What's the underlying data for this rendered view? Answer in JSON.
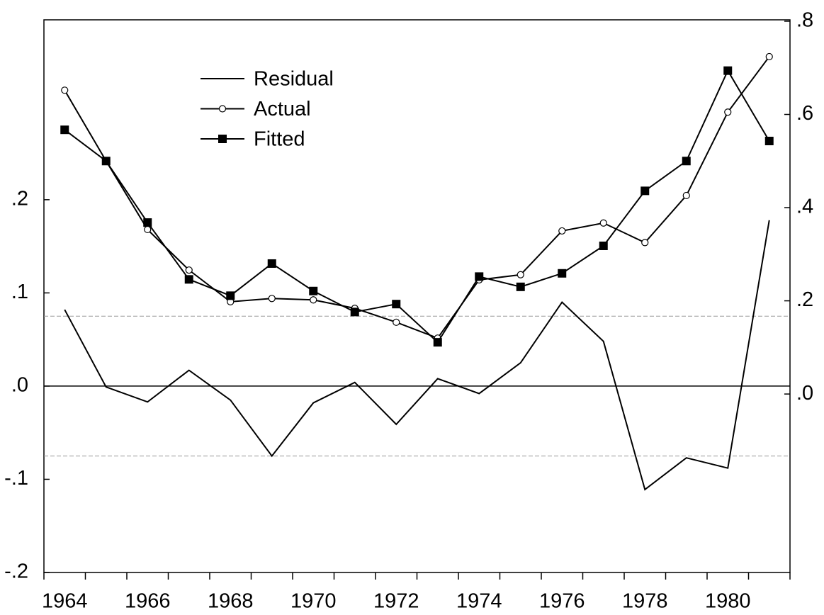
{
  "chart_data": {
    "type": "line",
    "categories": [
      "1964",
      null,
      "1966",
      null,
      "1968",
      null,
      "1970",
      null,
      "1972",
      null,
      "1974",
      null,
      "1976",
      null,
      "1978",
      null,
      "1980",
      null
    ],
    "series": [
      {
        "name": "Residual",
        "color": "#000000",
        "marker": "none",
        "axis": "y",
        "values": [
          0.082,
          -0.001,
          -0.017,
          0.017,
          -0.015,
          -0.075,
          -0.018,
          0.004,
          -0.041,
          0.008,
          -0.008,
          0.025,
          0.09,
          0.048,
          -0.111,
          -0.077,
          -0.088,
          0.178
        ]
      },
      {
        "name": "Actual",
        "color": "#000000",
        "marker": "circle",
        "axis": "y2",
        "values": [
          0.652,
          0.5,
          0.353,
          0.266,
          0.198,
          0.205,
          0.202,
          0.184,
          0.154,
          0.12,
          0.245,
          0.256,
          0.35,
          0.367,
          0.325,
          0.426,
          0.605,
          0.724
        ]
      },
      {
        "name": "Fitted",
        "color": "#000000",
        "marker": "square",
        "axis": "y2",
        "values": [
          0.567,
          0.5,
          0.368,
          0.246,
          0.211,
          0.28,
          0.221,
          0.176,
          0.193,
          0.111,
          0.252,
          0.23,
          0.259,
          0.318,
          0.436,
          0.5,
          0.694,
          0.543
        ]
      }
    ],
    "ylim": [
      -0.2,
      0.393
    ],
    "yticks": [
      {
        "value": 0.2,
        "label": ".2"
      },
      {
        "value": 0.1,
        "label": ".1"
      },
      {
        "value": 0,
        "label": ".0"
      },
      {
        "value": -0.1,
        "label": "-.1"
      },
      {
        "value": -0.2,
        "label": "-.2"
      }
    ],
    "y2lim": [
      -0.383,
      0.803
    ],
    "y2ticks": [
      {
        "value": 0.8,
        "label": ".8"
      },
      {
        "value": 0.6,
        "label": ".6"
      },
      {
        "value": 0.4,
        "label": ".4"
      },
      {
        "value": 0.2,
        "label": ".2"
      },
      {
        "value": 0,
        "label": ".0"
      }
    ],
    "residual_band": [
      -0.075,
      0.075
    ],
    "zero_line": 0,
    "legend": "upper left"
  }
}
